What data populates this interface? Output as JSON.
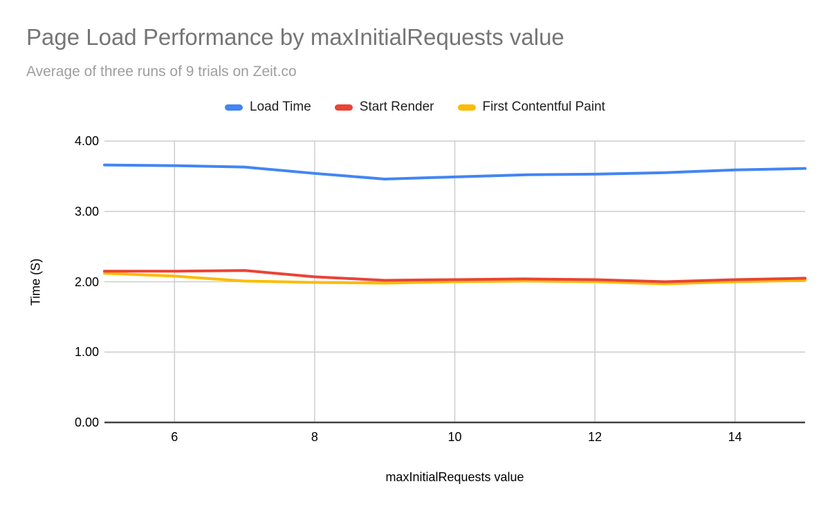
{
  "title": "Page Load Performance by maxInitialRequests value",
  "subtitle": "Average of three runs of 9 trials on Zeit.co",
  "colors": {
    "background": "#ffffff",
    "grid": "#cccccc",
    "axis": "#424242",
    "title_text": "#757575",
    "subtitle_text": "#9e9e9e",
    "blue": "#4285f4",
    "red": "#ea4335",
    "yellow": "#fbbc04"
  },
  "chart_data": {
    "type": "line",
    "title": "Page Load Performance by maxInitialRequests value",
    "subtitle": "Average of three runs of 9 trials on Zeit.co",
    "xlabel": "maxInitialRequests value",
    "ylabel": "Time (S)",
    "xlim": [
      5,
      15
    ],
    "ylim": [
      0,
      4
    ],
    "grid": true,
    "legend_position": "top",
    "x": [
      5,
      6,
      7,
      8,
      9,
      10,
      11,
      12,
      13,
      14,
      15
    ],
    "x_ticks": [
      {
        "label": "6",
        "value": 6
      },
      {
        "label": "8",
        "value": 8
      },
      {
        "label": "10",
        "value": 10
      },
      {
        "label": "12",
        "value": 12
      },
      {
        "label": "14",
        "value": 14
      }
    ],
    "y_ticks": [
      {
        "label": "0.00",
        "value": 0
      },
      {
        "label": "1.00",
        "value": 1
      },
      {
        "label": "2.00",
        "value": 2
      },
      {
        "label": "3.00",
        "value": 3
      },
      {
        "label": "4.00",
        "value": 4
      }
    ],
    "series": [
      {
        "name": "Load Time",
        "color": "#4285f4",
        "values": [
          3.66,
          3.65,
          3.63,
          3.54,
          3.46,
          3.49,
          3.52,
          3.53,
          3.55,
          3.59,
          3.61
        ]
      },
      {
        "name": "Start Render",
        "color": "#ea4335",
        "values": [
          2.15,
          2.15,
          2.16,
          2.07,
          2.02,
          2.03,
          2.04,
          2.03,
          2.0,
          2.03,
          2.05
        ]
      },
      {
        "name": "First Contentful Paint",
        "color": "#fbbc04",
        "values": [
          2.12,
          2.08,
          2.01,
          1.99,
          1.98,
          2.0,
          2.01,
          2.0,
          1.97,
          2.0,
          2.02
        ]
      }
    ]
  }
}
